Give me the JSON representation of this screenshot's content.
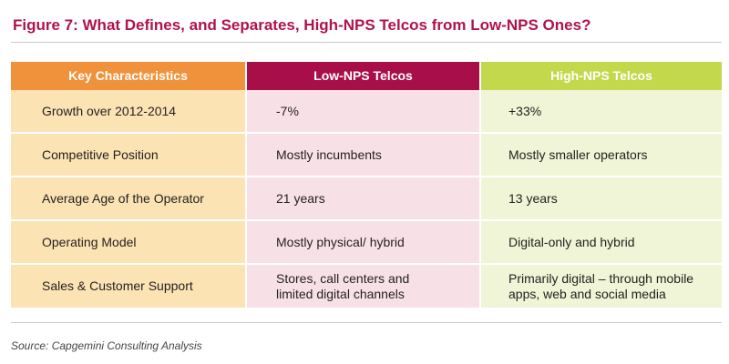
{
  "title": "Figure 7: What Defines, and Separates, High-NPS Telcos from Low-NPS Ones?",
  "table": {
    "headers": [
      "Key Characteristics",
      "Low-NPS Telcos",
      "High-NPS Telcos"
    ],
    "rows": [
      [
        "Growth over 2012-2014",
        "-7%",
        "+33%"
      ],
      [
        "Competitive Position",
        "Mostly incumbents",
        "Mostly smaller operators"
      ],
      [
        "Average Age of the Operator",
        "21 years",
        "13 years"
      ],
      [
        "Operating Model",
        "Mostly physical/ hybrid",
        "Digital-only and hybrid"
      ],
      [
        "Sales & Customer Support",
        "Stores, call centers and limited digital channels",
        "Primarily digital – through mobile apps, web and social media"
      ]
    ]
  },
  "source": "Source: Capgemini Consulting Analysis",
  "colors": {
    "title": "#b0124f",
    "key_header": "#f0923b",
    "low_header": "#a80f48",
    "high_header": "#c3d84b",
    "key_cell": "#fbe3b4",
    "low_cell": "#f8e1e6",
    "high_cell": "#eff5d6"
  }
}
